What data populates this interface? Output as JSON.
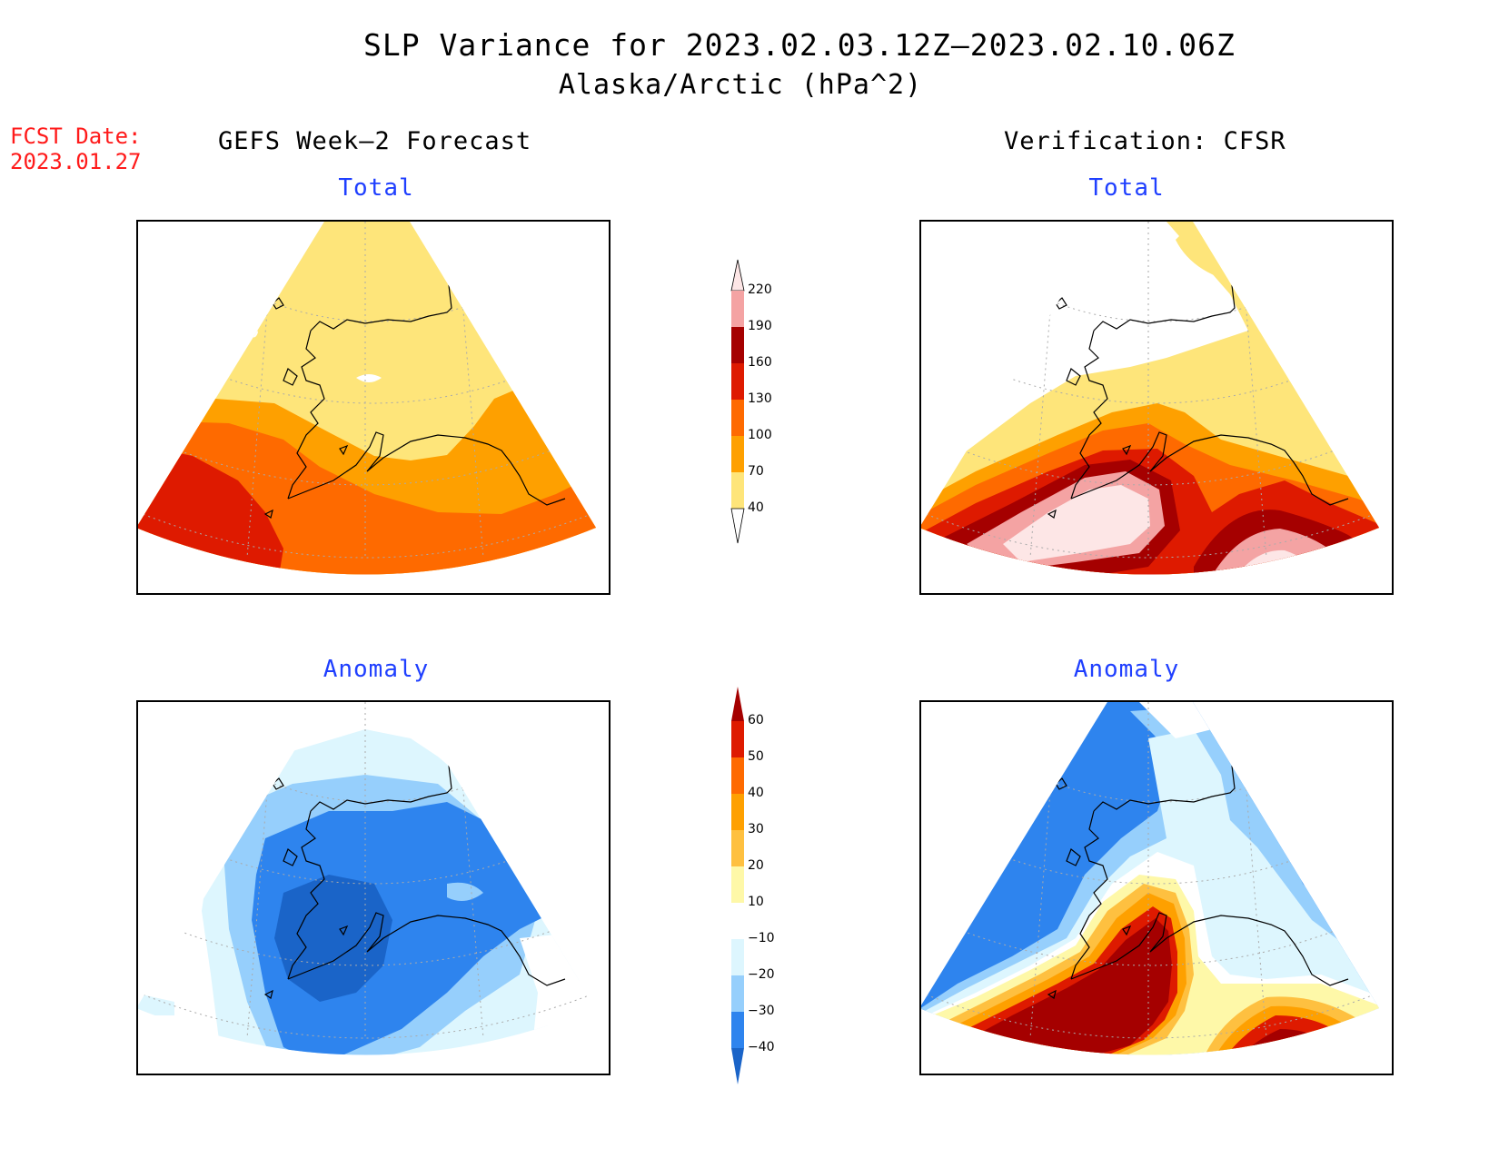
{
  "header": {
    "title": "SLP Variance for 2023.02.03.12Z–2023.02.10.06Z",
    "subtitle": "Alaska/Arctic (hPa^2)",
    "fcst_line1": "FCST Date:",
    "fcst_line2": "2023.01.27",
    "left_column": "GEFS Week–2 Forecast",
    "right_column": "Verification: CFSR"
  },
  "panels": {
    "tl": "Total",
    "tr": "Total",
    "bl": "Anomaly",
    "br": "Anomaly"
  },
  "colorbar_total": {
    "labels": [
      "220",
      "190",
      "160",
      "130",
      "100",
      "70",
      "40"
    ],
    "colors": [
      "#fde6e6",
      "#f4a3a3",
      "#a50000",
      "#de1a00",
      "#fe6a00",
      "#fea000",
      "#fee57a"
    ]
  },
  "colorbar_anomaly": {
    "labels": [
      "60",
      "50",
      "40",
      "30",
      "20",
      "10",
      "−10",
      "−20",
      "−30",
      "−40"
    ],
    "colors": [
      "#a50000",
      "#de1a00",
      "#fe6a00",
      "#fea000",
      "#fec040",
      "#fef8a8",
      "#ffffff",
      "#ddf6fe",
      "#96cffc",
      "#2e84ee",
      "#1a64c8"
    ]
  },
  "colors": {
    "title_blue": "#1f3fff",
    "fcst_red": "#ff1a1a"
  }
}
